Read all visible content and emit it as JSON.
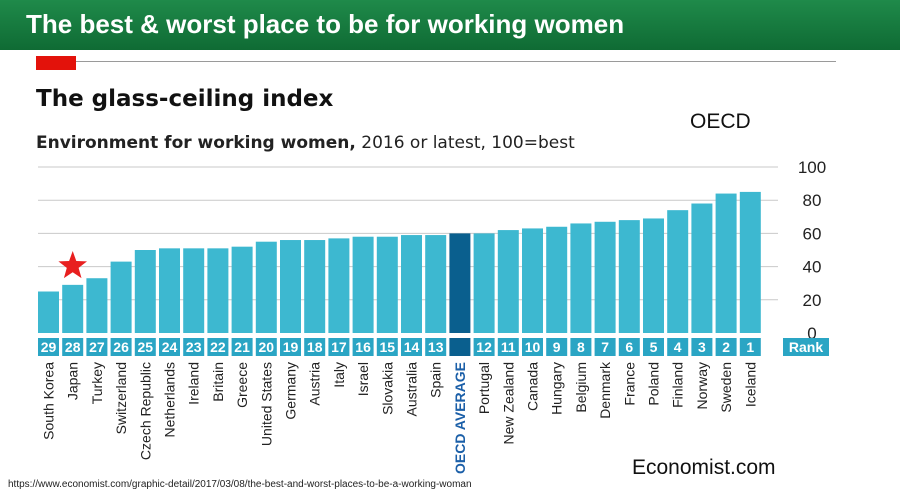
{
  "banner": {
    "title": "The best & worst place to be for working women"
  },
  "header": {
    "title": "The glass-ceiling index",
    "subtitle_bold": "Environment for working women,",
    "subtitle_rest": " 2016 or latest, 100=best",
    "tag": "OECD"
  },
  "footer": {
    "url": "https://www.economist.com/graphic-detail/2017/03/08/the-best-and-worst-places-to-be-a-working-woman",
    "source": "Economist.com"
  },
  "colors": {
    "banner": "#138044",
    "bar": "#3db8d0",
    "highlight_bar": "#0a5f8e",
    "highlight_label": "#1b5fa8",
    "rank_box": "#2aa5c4",
    "star": "#e81f1f",
    "accent": "#e3120b",
    "grid": "#c9c9c9"
  },
  "chart_data": {
    "type": "bar",
    "title": "The glass-ceiling index",
    "subtitle": "Environment for working women, 2016 or latest, 100=best",
    "ylim": [
      0,
      100
    ],
    "yticks": [
      0,
      20,
      40,
      60,
      80,
      100
    ],
    "grid": true,
    "rank_header": "Rank",
    "highlight": "OECD AVERAGE",
    "marked": {
      "category": "Japan",
      "icon": "star-icon"
    },
    "categories": [
      "South Korea",
      "Japan",
      "Turkey",
      "Switzerland",
      "Czech Republic",
      "Netherlands",
      "Ireland",
      "Britain",
      "Greece",
      "United States",
      "Germany",
      "Austria",
      "Italy",
      "Israel",
      "Slovakia",
      "Australia",
      "Spain",
      "OECD AVERAGE",
      "Portugal",
      "New Zealand",
      "Canada",
      "Hungary",
      "Belgium",
      "Denmark",
      "France",
      "Poland",
      "Finland",
      "Norway",
      "Sweden",
      "Iceland"
    ],
    "ranks": [
      "29",
      "28",
      "27",
      "26",
      "25",
      "24",
      "23",
      "22",
      "21",
      "20",
      "19",
      "18",
      "17",
      "16",
      "15",
      "14",
      "13",
      "",
      "12",
      "11",
      "10",
      "9",
      "8",
      "7",
      "6",
      "5",
      "4",
      "3",
      "2",
      "1"
    ],
    "values": [
      25,
      29,
      33,
      43,
      50,
      51,
      51,
      51,
      52,
      55,
      56,
      56,
      57,
      58,
      58,
      59,
      59,
      60,
      60,
      62,
      63,
      64,
      66,
      67,
      68,
      69,
      74,
      78,
      84,
      85
    ]
  }
}
